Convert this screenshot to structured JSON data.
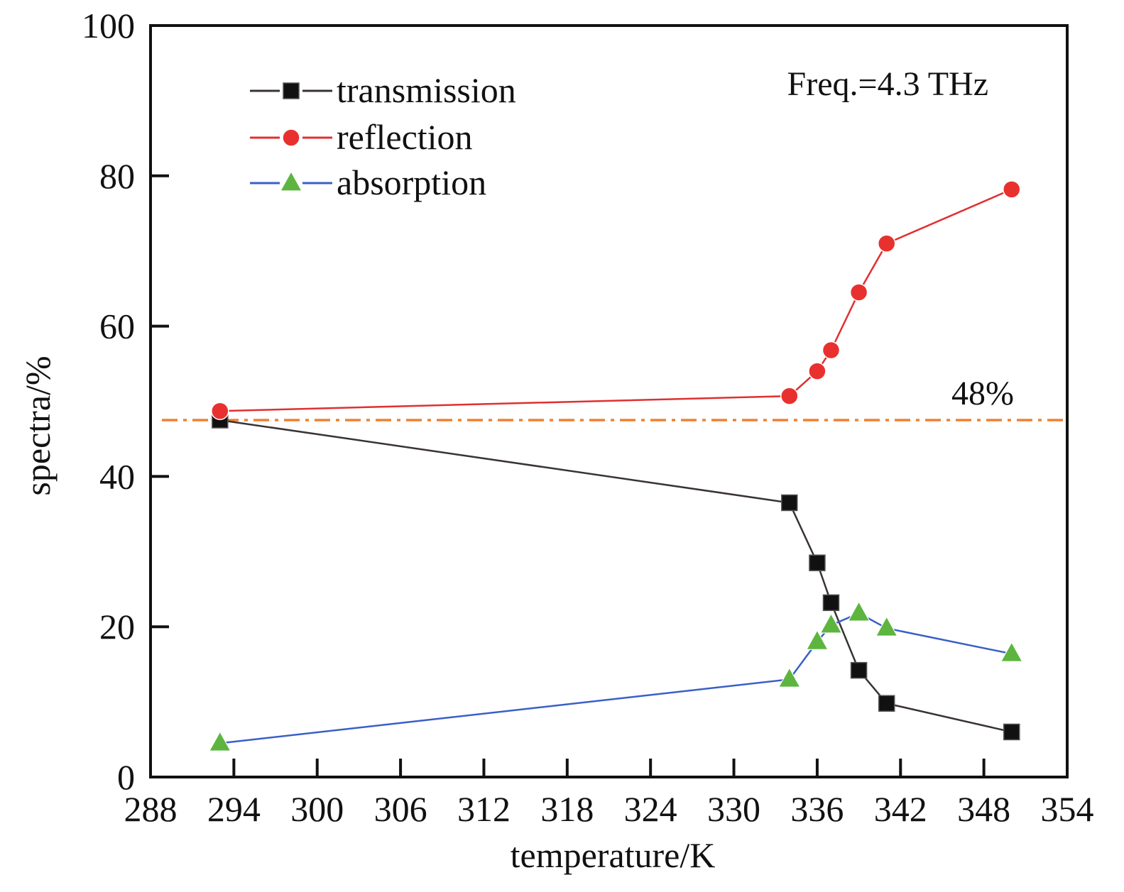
{
  "chart_data": {
    "type": "line",
    "xlabel": "temperature/K",
    "ylabel": "spectra/%",
    "xlim": [
      288,
      354
    ],
    "ylim": [
      0,
      100
    ],
    "x_ticks": [
      288,
      294,
      300,
      306,
      312,
      318,
      324,
      330,
      336,
      342,
      348,
      354
    ],
    "y_ticks": [
      0,
      20,
      40,
      60,
      80,
      100
    ],
    "annotations": [
      {
        "text": "Freq.=4.3 THz",
        "position": "top-right"
      },
      {
        "text": "48%",
        "y": 47.5,
        "style": "dash-dot reference line"
      }
    ],
    "reference_line": {
      "y": 47.5,
      "color": "#f08030",
      "style": "dash-dot"
    },
    "legend": {
      "placement": "top-left"
    },
    "grid": false,
    "series": [
      {
        "name": "transmission",
        "color": "#3a3333",
        "marker": "square",
        "marker_color": "#111111",
        "x": [
          293,
          334,
          336,
          337,
          339,
          341,
          350
        ],
        "y": [
          47.5,
          36.5,
          28.5,
          23.2,
          14.2,
          9.8,
          6.0
        ]
      },
      {
        "name": "reflection",
        "color": "#e03030",
        "marker": "circle",
        "marker_color": "#e8312f",
        "x": [
          293,
          334,
          336,
          337,
          339,
          341,
          350
        ],
        "y": [
          48.7,
          50.7,
          54.0,
          56.8,
          64.5,
          71.0,
          78.2
        ]
      },
      {
        "name": "absorption",
        "color": "#3a5fc8",
        "marker": "triangle",
        "marker_color": "#5db53f",
        "x": [
          293,
          334,
          336,
          337,
          339,
          341,
          350
        ],
        "y": [
          4.5,
          13.0,
          18.0,
          20.2,
          21.8,
          19.8,
          16.4
        ]
      }
    ]
  }
}
